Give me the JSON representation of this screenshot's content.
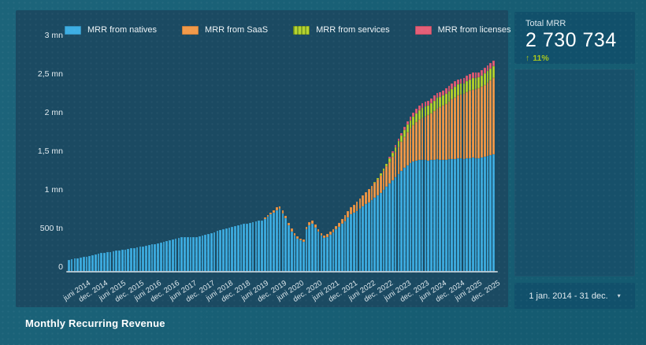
{
  "page": {
    "title": "Monthly Recurring Revenue"
  },
  "kpi": {
    "label": "Total MRR",
    "value": "2 730 734",
    "delta": "11%",
    "delta_arrow": "↑",
    "delta_color": "#a9c71d"
  },
  "date_range": {
    "label": "1 jan. 2014 - 31 dec.",
    "caret": "▾"
  },
  "chart_data": {
    "type": "bar",
    "stacked": true,
    "title": "Monthly Recurring Revenue",
    "xlabel": "",
    "ylabel": "",
    "unit": "tn (thousands); mn = millions",
    "months": 144,
    "x_range": "jan 2014 - dec 2025, one bar per month",
    "ylim": [
      0,
      3000
    ],
    "grid": false,
    "legend_position": "top",
    "y_ticks": [
      {
        "value": 3000,
        "label": "3 mn"
      },
      {
        "value": 2500,
        "label": "2,5 mn"
      },
      {
        "value": 2000,
        "label": "2 mn"
      },
      {
        "value": 1500,
        "label": "1,5 mn"
      },
      {
        "value": 1000,
        "label": "1 mn"
      },
      {
        "value": 500,
        "label": "500 tn"
      },
      {
        "value": 0,
        "label": "0"
      }
    ],
    "x_tick_first": 5,
    "x_tick_every": 6,
    "x_tick_labels": [
      "juni 2014",
      "dec. 2014",
      "juni 2015",
      "dec. 2015",
      "juni 2016",
      "dec. 2016",
      "juni 2017",
      "dec. 2017",
      "juni 2018",
      "dec. 2018",
      "juni 2019",
      "dec. 2019",
      "juni 2020",
      "dec. 2020",
      "juni 2021",
      "dec. 2021",
      "juni 2022",
      "dec. 2022",
      "juni 2023",
      "dec. 2023",
      "juni 2024",
      "dec. 2024",
      "juni 2025",
      "dec. 2025"
    ],
    "series": [
      {
        "name": "MRR from natives",
        "color": "#3daee3",
        "values": [
          155,
          162,
          170,
          176,
          183,
          190,
          198,
          205,
          213,
          222,
          230,
          240,
          247,
          254,
          260,
          266,
          272,
          278,
          284,
          290,
          296,
          303,
          310,
          317,
          324,
          331,
          338,
          346,
          354,
          362,
          371,
          380,
          390,
          400,
          411,
          422,
          432,
          440,
          446,
          449,
          448,
          446,
          448,
          452,
          459,
          468,
          479,
          491,
          503,
          515,
          527,
          538,
          549,
          559,
          569,
          579,
          589,
          599,
          609,
          618,
          626,
          634,
          642,
          650,
          659,
          668,
          688,
          714,
          742,
          770,
          796,
          812,
          755,
          690,
          600,
          525,
          470,
          432,
          405,
          392,
          552,
          607,
          625,
          576,
          516,
          468,
          440,
          452,
          482,
          514,
          548,
          582,
          618,
          658,
          700,
          745,
          762,
          790,
          818,
          846,
          874,
          902,
          930,
          958,
          988,
          1020,
          1060,
          1100,
          1140,
          1180,
          1220,
          1262,
          1305,
          1348,
          1382,
          1408,
          1428,
          1440,
          1446,
          1450,
          1446,
          1440,
          1444,
          1450,
          1454,
          1450,
          1446,
          1450,
          1455,
          1460,
          1464,
          1468,
          1464,
          1458,
          1466,
          1472,
          1478,
          1473,
          1468,
          1478,
          1488,
          1498,
          1510,
          1521
        ]
      },
      {
        "name": "MRR from SaaS",
        "color": "#f19a4a",
        "values": [
          0,
          0,
          0,
          0,
          0,
          0,
          0,
          0,
          0,
          0,
          0,
          0,
          0,
          0,
          0,
          0,
          0,
          0,
          0,
          0,
          0,
          0,
          0,
          0,
          0,
          0,
          0,
          0,
          0,
          0,
          0,
          0,
          0,
          0,
          0,
          0,
          0,
          0,
          0,
          0,
          0,
          0,
          0,
          0,
          0,
          0,
          0,
          0,
          0,
          0,
          0,
          0,
          0,
          0,
          0,
          0,
          0,
          0,
          0,
          0,
          0,
          0,
          0,
          0,
          0,
          0,
          12,
          18,
          24,
          30,
          36,
          40,
          40,
          38,
          35,
          32,
          30,
          28,
          26,
          25,
          34,
          40,
          40,
          38,
          35,
          32,
          30,
          33,
          37,
          42,
          48,
          55,
          63,
          72,
          82,
          93,
          104,
          115,
          127,
          140,
          153,
          166,
          180,
          194,
          209,
          226,
          244,
          263,
          283,
          305,
          328,
          352,
          376,
          400,
          424,
          448,
          472,
          496,
          520,
          544,
          566,
          588,
          610,
          634,
          658,
          682,
          704,
          726,
          748,
          770,
          792,
          814,
          830,
          845,
          858,
          870,
          884,
          895,
          906,
          920,
          935,
          952,
          970,
          990
        ]
      },
      {
        "name": "MRR from services",
        "color": "#b6d32f",
        "swatch_pattern": "dashed",
        "values": [
          0,
          0,
          0,
          0,
          0,
          0,
          0,
          0,
          0,
          0,
          0,
          0,
          0,
          0,
          0,
          0,
          0,
          0,
          0,
          0,
          0,
          0,
          0,
          0,
          0,
          0,
          0,
          0,
          0,
          0,
          0,
          0,
          0,
          0,
          0,
          0,
          0,
          0,
          0,
          0,
          0,
          0,
          0,
          0,
          0,
          0,
          0,
          0,
          0,
          0,
          0,
          0,
          0,
          0,
          0,
          0,
          0,
          0,
          0,
          0,
          0,
          0,
          0,
          0,
          0,
          0,
          0,
          0,
          0,
          0,
          0,
          0,
          0,
          0,
          0,
          0,
          0,
          0,
          0,
          0,
          0,
          0,
          0,
          0,
          0,
          0,
          0,
          0,
          0,
          0,
          0,
          0,
          0,
          0,
          0,
          0,
          0,
          0,
          0,
          0,
          0,
          0,
          0,
          12,
          18,
          25,
          32,
          40,
          48,
          57,
          66,
          75,
          84,
          93,
          101,
          108,
          114,
          120,
          126,
          132,
          130,
          128,
          132,
          135,
          138,
          135,
          132,
          135,
          138,
          140,
          142,
          144,
          142,
          140,
          144,
          146,
          148,
          145,
          142,
          146,
          150,
          152,
          154,
          150
        ]
      },
      {
        "name": "MRR from licenses",
        "color": "#e45f78",
        "values": [
          0,
          0,
          0,
          0,
          0,
          0,
          0,
          0,
          0,
          0,
          0,
          0,
          0,
          0,
          0,
          0,
          0,
          0,
          0,
          0,
          0,
          0,
          0,
          0,
          0,
          0,
          0,
          0,
          0,
          0,
          0,
          0,
          0,
          0,
          0,
          0,
          0,
          0,
          0,
          0,
          0,
          0,
          0,
          0,
          0,
          0,
          0,
          0,
          0,
          0,
          0,
          0,
          0,
          0,
          0,
          0,
          0,
          0,
          0,
          0,
          0,
          0,
          0,
          0,
          0,
          0,
          0,
          0,
          0,
          0,
          0,
          0,
          0,
          0,
          0,
          0,
          0,
          0,
          0,
          0,
          0,
          0,
          0,
          0,
          0,
          0,
          0,
          0,
          0,
          0,
          0,
          0,
          0,
          0,
          0,
          0,
          0,
          0,
          0,
          0,
          0,
          0,
          0,
          0,
          0,
          0,
          0,
          0,
          20,
          24,
          28,
          32,
          36,
          40,
          44,
          47,
          50,
          53,
          56,
          58,
          58,
          60,
          60,
          62,
          62,
          64,
          64,
          65,
          66,
          66,
          68,
          68,
          68,
          68,
          70,
          70,
          72,
          70,
          70,
          72,
          72,
          74,
          74,
          70
        ]
      }
    ]
  }
}
